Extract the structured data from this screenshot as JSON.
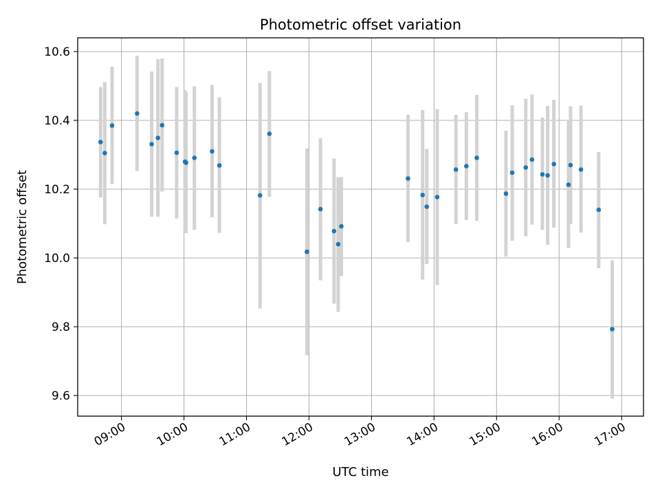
{
  "chart_data": {
    "type": "scatter",
    "title": "Photometric offset variation",
    "xlabel": "UTC time",
    "ylabel": "Photometric offset",
    "x_unit": "hours UTC",
    "xlim": [
      8.3,
      17.35
    ],
    "ylim": [
      9.54,
      10.64
    ],
    "xticks": [
      "09:00",
      "10:00",
      "11:00",
      "12:00",
      "13:00",
      "14:00",
      "15:00",
      "16:00",
      "17:00"
    ],
    "yticks": [
      "9.6",
      "9.8",
      "10.0",
      "10.2",
      "10.4",
      "10.6"
    ],
    "grid": true,
    "point_color": "#1f77b4",
    "errorbar_color": "#d3d3d3",
    "points": [
      {
        "x": "08:40",
        "y": 10.337,
        "ylow": 10.176,
        "yhigh": 10.497
      },
      {
        "x": "08:44",
        "y": 10.305,
        "ylow": 10.098,
        "yhigh": 10.511
      },
      {
        "x": "08:51",
        "y": 10.385,
        "ylow": 10.215,
        "yhigh": 10.556
      },
      {
        "x": "09:15",
        "y": 10.42,
        "ylow": 10.253,
        "yhigh": 10.588
      },
      {
        "x": "09:29",
        "y": 10.331,
        "ylow": 10.12,
        "yhigh": 10.542
      },
      {
        "x": "09:35",
        "y": 10.349,
        "ylow": 10.12,
        "yhigh": 10.578
      },
      {
        "x": "09:39",
        "y": 10.386,
        "ylow": 10.193,
        "yhigh": 10.58
      },
      {
        "x": "09:53",
        "y": 10.306,
        "ylow": 10.115,
        "yhigh": 10.497
      },
      {
        "x": "10:01",
        "y": 10.28,
        "ylow": 10.072,
        "yhigh": 10.488
      },
      {
        "x": "10:02",
        "y": 10.277,
        "ylow": 10.072,
        "yhigh": 10.482
      },
      {
        "x": "10:10",
        "y": 10.291,
        "ylow": 10.082,
        "yhigh": 10.499
      },
      {
        "x": "10:27",
        "y": 10.31,
        "ylow": 10.118,
        "yhigh": 10.503
      },
      {
        "x": "10:34",
        "y": 10.269,
        "ylow": 10.073,
        "yhigh": 10.467
      },
      {
        "x": "11:13",
        "y": 10.182,
        "ylow": 9.853,
        "yhigh": 10.509
      },
      {
        "x": "11:22",
        "y": 10.361,
        "ylow": 10.178,
        "yhigh": 10.543
      },
      {
        "x": "11:58",
        "y": 10.018,
        "ylow": 9.717,
        "yhigh": 10.318
      },
      {
        "x": "12:11",
        "y": 10.142,
        "ylow": 9.935,
        "yhigh": 10.348
      },
      {
        "x": "12:24",
        "y": 10.078,
        "ylow": 9.867,
        "yhigh": 10.289
      },
      {
        "x": "12:28",
        "y": 10.04,
        "ylow": 9.843,
        "yhigh": 10.235
      },
      {
        "x": "12:31",
        "y": 10.092,
        "ylow": 9.947,
        "yhigh": 10.235
      },
      {
        "x": "13:35",
        "y": 10.231,
        "ylow": 10.046,
        "yhigh": 10.416
      },
      {
        "x": "13:49",
        "y": 10.183,
        "ylow": 9.937,
        "yhigh": 10.43
      },
      {
        "x": "13:53",
        "y": 10.149,
        "ylow": 9.982,
        "yhigh": 10.317
      },
      {
        "x": "14:03",
        "y": 10.177,
        "ylow": 9.921,
        "yhigh": 10.433
      },
      {
        "x": "14:21",
        "y": 10.257,
        "ylow": 10.098,
        "yhigh": 10.416
      },
      {
        "x": "14:31",
        "y": 10.267,
        "ylow": 10.11,
        "yhigh": 10.424
      },
      {
        "x": "14:41",
        "y": 10.291,
        "ylow": 10.108,
        "yhigh": 10.474
      },
      {
        "x": "15:09",
        "y": 10.187,
        "ylow": 10.004,
        "yhigh": 10.37
      },
      {
        "x": "15:15",
        "y": 10.248,
        "ylow": 10.05,
        "yhigh": 10.444
      },
      {
        "x": "15:28",
        "y": 10.263,
        "ylow": 10.063,
        "yhigh": 10.463
      },
      {
        "x": "15:34",
        "y": 10.286,
        "ylow": 10.097,
        "yhigh": 10.475
      },
      {
        "x": "15:44",
        "y": 10.243,
        "ylow": 10.082,
        "yhigh": 10.408
      },
      {
        "x": "15:49",
        "y": 10.24,
        "ylow": 10.038,
        "yhigh": 10.442
      },
      {
        "x": "15:55",
        "y": 10.273,
        "ylow": 10.088,
        "yhigh": 10.46
      },
      {
        "x": "16:09",
        "y": 10.213,
        "ylow": 10.029,
        "yhigh": 10.398
      },
      {
        "x": "16:11",
        "y": 10.27,
        "ylow": 10.098,
        "yhigh": 10.441
      },
      {
        "x": "16:21",
        "y": 10.257,
        "ylow": 10.074,
        "yhigh": 10.443
      },
      {
        "x": "16:38",
        "y": 10.14,
        "ylow": 9.97,
        "yhigh": 10.308
      },
      {
        "x": "16:51",
        "y": 9.793,
        "ylow": 9.591,
        "yhigh": 9.993
      }
    ]
  }
}
